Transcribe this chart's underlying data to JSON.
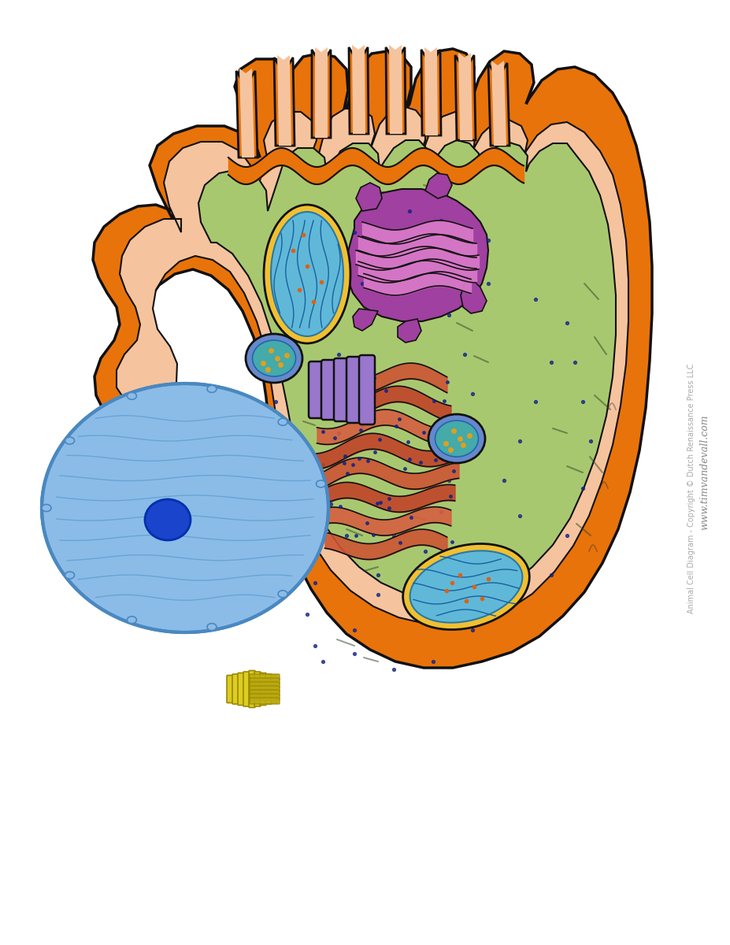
{
  "background_color": "#ffffff",
  "cell_membrane_color": "#E8730A",
  "cell_membrane_inner_color": "#F5C49E",
  "cytoplasm_color": "#A8C870",
  "nucleus_color": "#8BBCE8",
  "nucleus_border_color": "#4A88C0",
  "nucleolus_color": "#1A44CC",
  "mito_outer_color": "#F0C030",
  "mito_inner_color": "#60B8D8",
  "golgi_pink_color": "#D878C8",
  "golgi_purple_color": "#A040A0",
  "er_rough_color": "#CC5533",
  "er_smooth_color": "#8877CC",
  "lyso_outer_color": "#6688CC",
  "lyso_inner_color": "#44AAAA",
  "cent_color": "#DDCC22",
  "outline_color": "#111111",
  "watermark_text": "www.timvandevall.com",
  "copyright_text": "Animal Cell Diagram - Copyright © Dutch Renaissance Press LLC",
  "wm_color": "#999999"
}
